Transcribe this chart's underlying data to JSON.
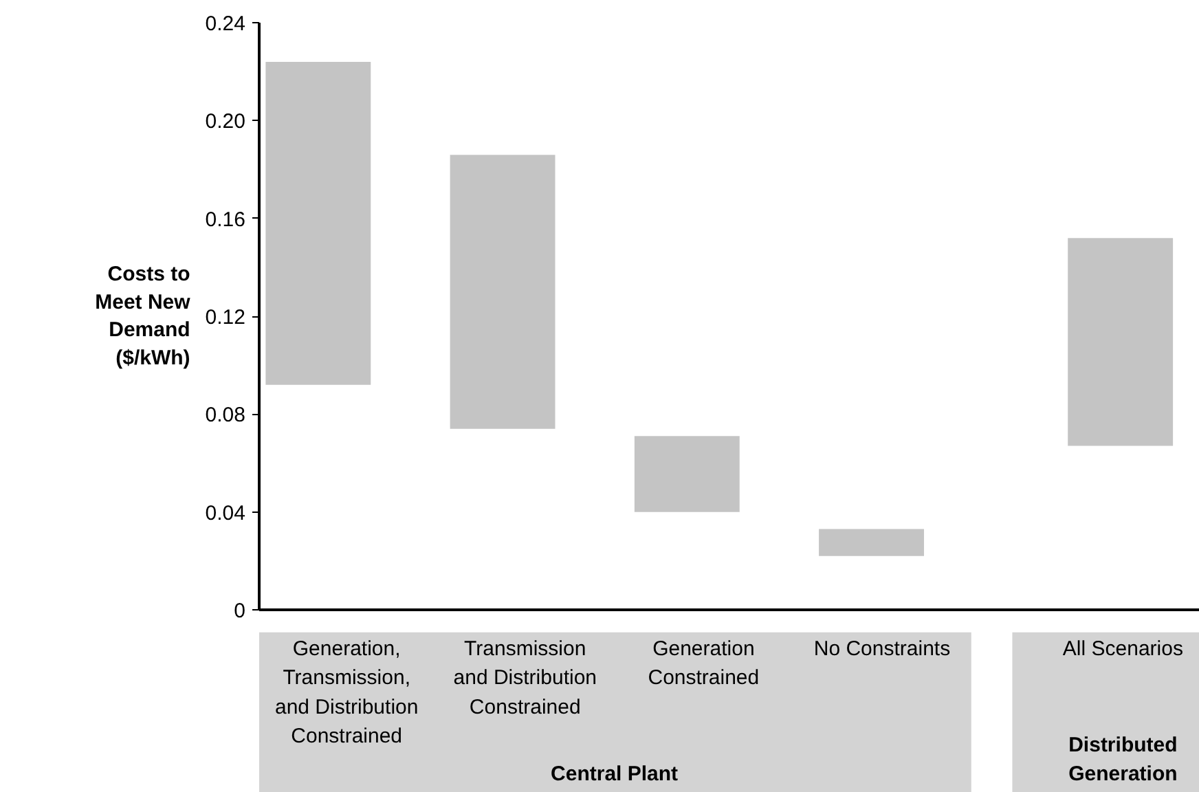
{
  "chart_data": {
    "type": "bar",
    "ylabel": "Costs to Meet New Demand ($/kWh)",
    "categories": [
      "Generation,\nTransmission,\nand Distribution\nConstrained",
      "Transmission\nand Distribution\nConstrained",
      "Generation\nConstrained",
      "No Constraints",
      "All Scenarios"
    ],
    "base": [
      0.092,
      0.074,
      0.04,
      0.022,
      0.067
    ],
    "values": [
      0.132,
      0.112,
      0.031,
      0.011,
      0.085
    ],
    "color": "#c4c4c4",
    "ylim": [
      0,
      0.24
    ],
    "yticks": [
      0,
      0.04,
      0.08,
      0.12,
      0.16,
      {
        "value": 0.2,
        "label": "0.20"
      },
      0.24
    ],
    "annotations": [
      "Central Plant",
      "Distributed Generation"
    ]
  }
}
